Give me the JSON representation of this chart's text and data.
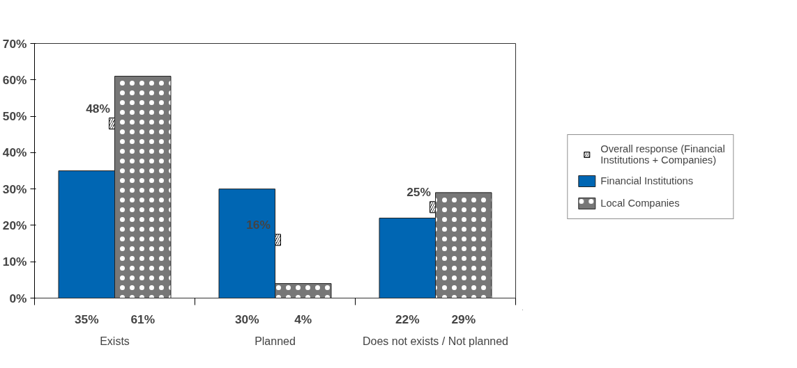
{
  "chart_data": {
    "type": "bar",
    "categories": [
      "Exists",
      "Planned",
      "Does not exists / Not planned"
    ],
    "series": [
      {
        "name": "Overall response (Financial Institutions + Companies)",
        "type": "scatter",
        "marker": "square",
        "color": "#000000",
        "values": [
          48,
          16,
          25
        ],
        "value_labels": [
          "48%",
          "16%",
          "25%"
        ]
      },
      {
        "name": "Financial Institutions",
        "color": "#0066b3",
        "values": [
          35,
          30,
          22
        ],
        "value_labels": [
          "35%",
          "30%",
          "22%"
        ]
      },
      {
        "name": "Local Companies",
        "color": "#777777",
        "values": [
          61,
          4,
          29
        ],
        "value_labels": [
          "61%",
          "4%",
          "29%"
        ]
      }
    ],
    "ylim": [
      0,
      70
    ],
    "yticks": [
      {
        "value": 0,
        "label": "0%"
      },
      {
        "value": 10,
        "label": "10%"
      },
      {
        "value": 20,
        "label": "20%"
      },
      {
        "value": 30,
        "label": "30%"
      },
      {
        "value": 40,
        "label": "40%"
      },
      {
        "value": 50,
        "label": "50%"
      },
      {
        "value": 60,
        "label": "60%"
      },
      {
        "value": 70,
        "label": "70%"
      }
    ],
    "grid": false,
    "legend": "right"
  }
}
